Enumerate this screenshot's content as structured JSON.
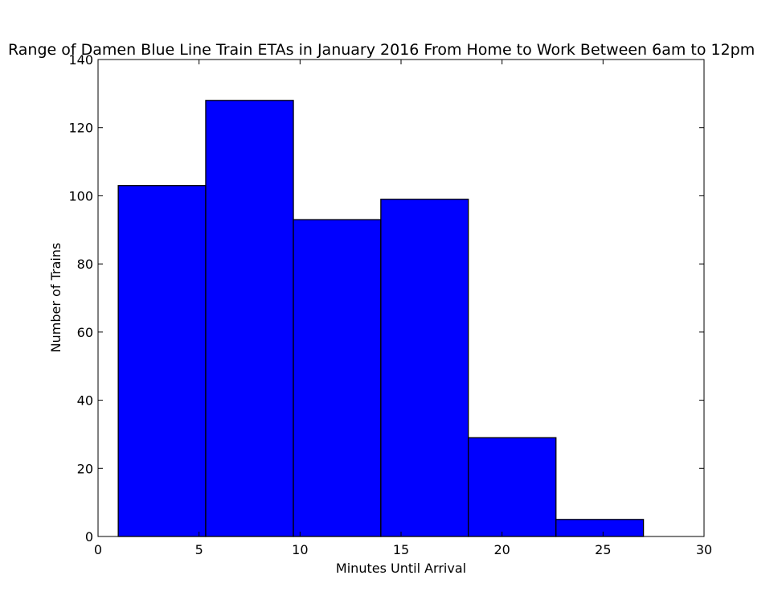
{
  "chart_data": {
    "type": "bar",
    "title": "Range of Damen Blue Line Train ETAs in January 2016 From Home to Work Between 6am to 12pm",
    "xlabel": "Minutes Until Arrival",
    "ylabel": "Number of Trains",
    "xlim": [
      0,
      30
    ],
    "ylim": [
      0,
      140
    ],
    "xticks": [
      0,
      5,
      10,
      15,
      20,
      25,
      30
    ],
    "yticks": [
      0,
      20,
      40,
      60,
      80,
      100,
      120,
      140
    ],
    "grid": false,
    "bins": [
      {
        "start": 1.0,
        "end": 5.33,
        "count": 103
      },
      {
        "start": 5.33,
        "end": 9.67,
        "count": 128
      },
      {
        "start": 9.67,
        "end": 14.0,
        "count": 93
      },
      {
        "start": 14.0,
        "end": 18.33,
        "count": 99
      },
      {
        "start": 18.33,
        "end": 22.67,
        "count": 29
      },
      {
        "start": 22.67,
        "end": 27.0,
        "count": 5
      }
    ],
    "colors": {
      "bar_fill": "#0000ff",
      "bar_edge": "#000000",
      "axes": "#000000"
    }
  }
}
